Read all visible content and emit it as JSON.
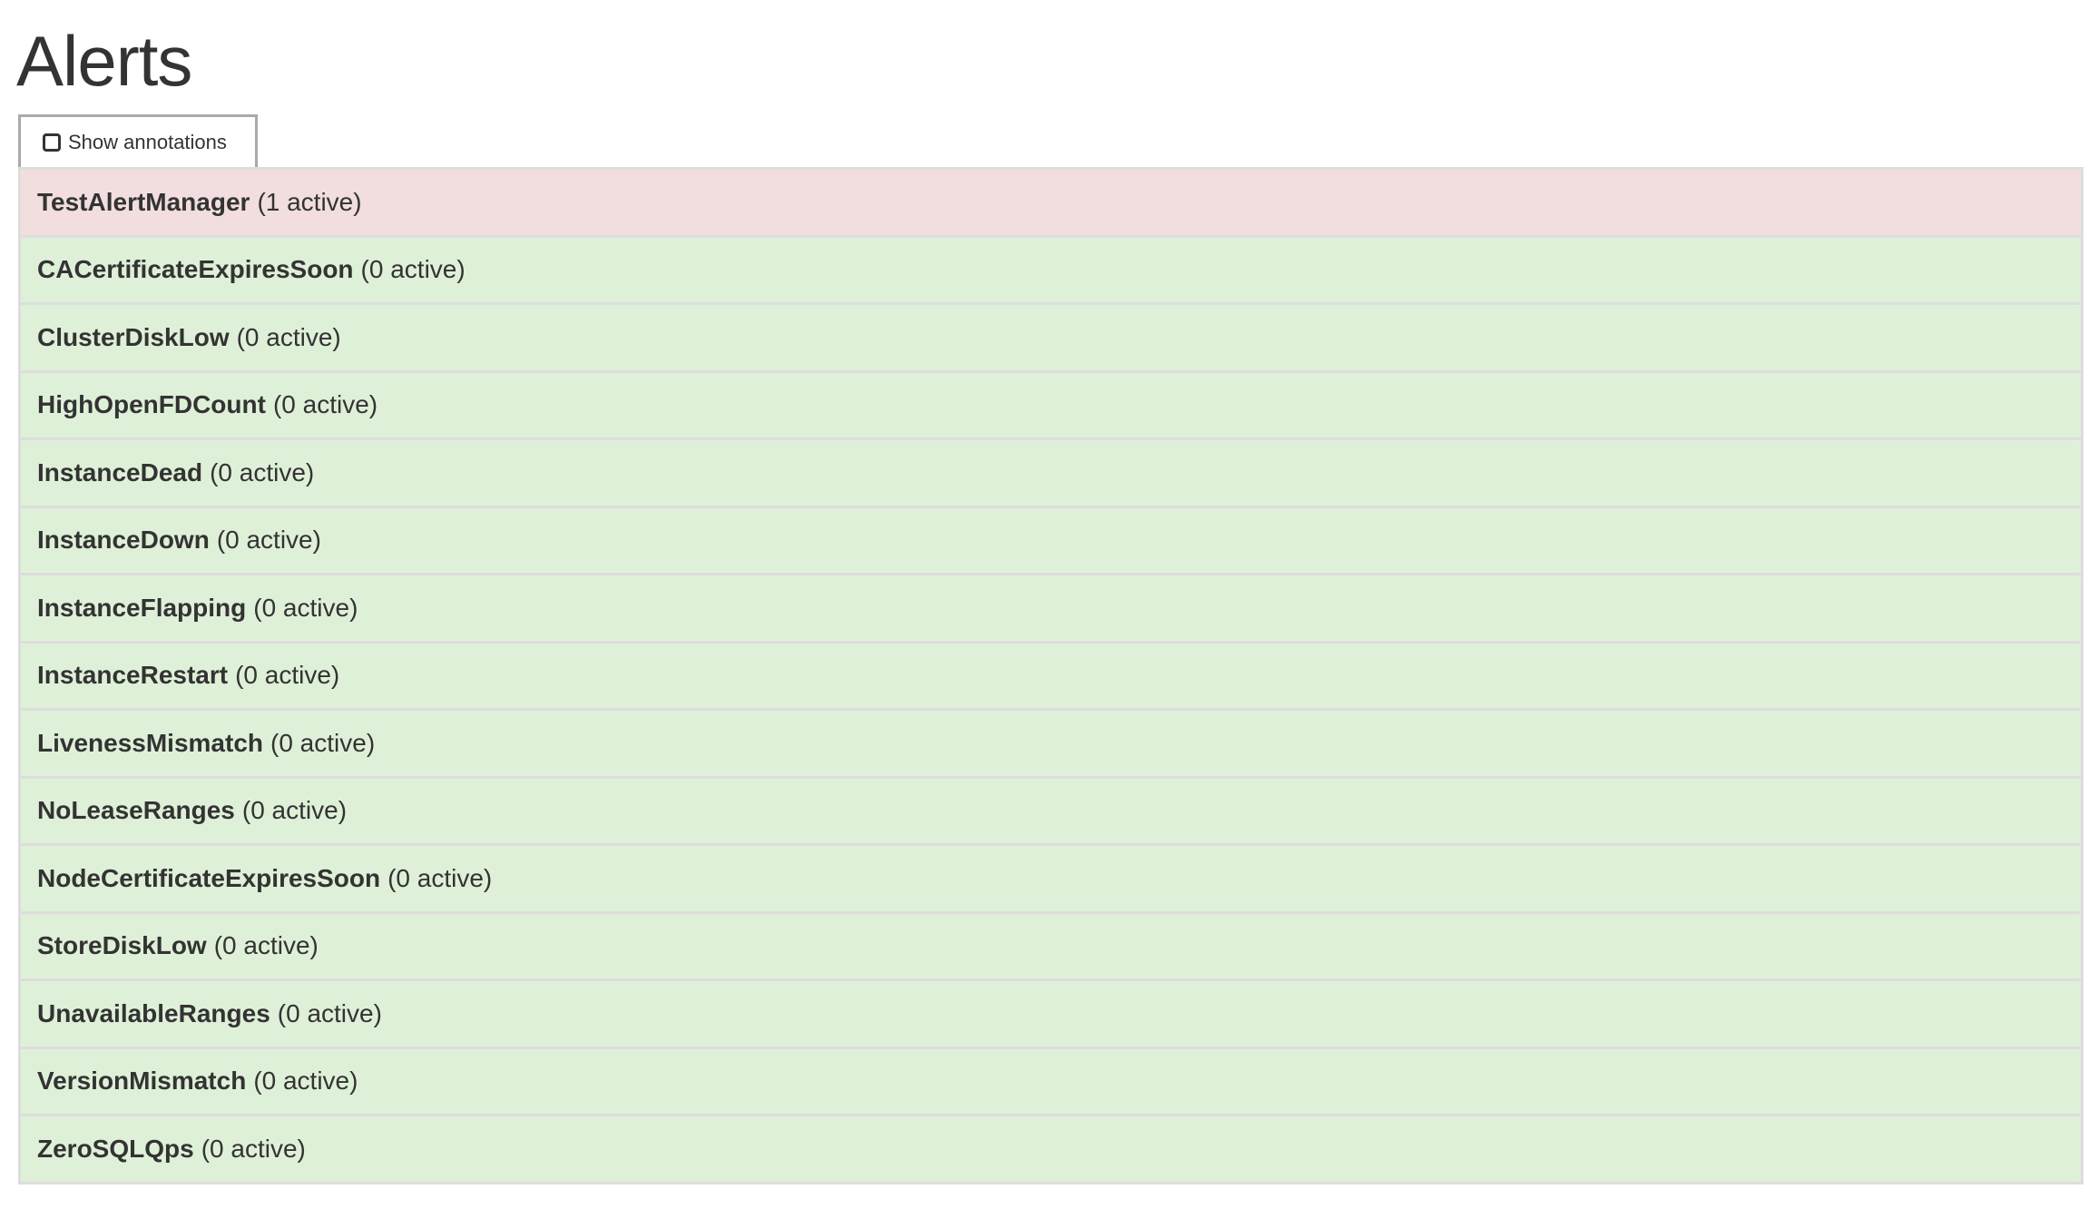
{
  "page": {
    "title": "Alerts"
  },
  "toolbar": {
    "show_annotations_label": "Show annotations",
    "show_annotations_checked": false
  },
  "colors": {
    "firing": "#f2dede",
    "inactive": "#dff0d8",
    "border": "#dddddd",
    "text": "#333333"
  },
  "alerts": [
    {
      "name": "TestAlertManager",
      "count": "(1 active)",
      "state": "firing"
    },
    {
      "name": "CACertificateExpiresSoon",
      "count": "(0 active)",
      "state": "ok"
    },
    {
      "name": "ClusterDiskLow",
      "count": "(0 active)",
      "state": "ok"
    },
    {
      "name": "HighOpenFDCount",
      "count": "(0 active)",
      "state": "ok"
    },
    {
      "name": "InstanceDead",
      "count": "(0 active)",
      "state": "ok"
    },
    {
      "name": "InstanceDown",
      "count": "(0 active)",
      "state": "ok"
    },
    {
      "name": "InstanceFlapping",
      "count": "(0 active)",
      "state": "ok"
    },
    {
      "name": "InstanceRestart",
      "count": "(0 active)",
      "state": "ok"
    },
    {
      "name": "LivenessMismatch",
      "count": "(0 active)",
      "state": "ok"
    },
    {
      "name": "NoLeaseRanges",
      "count": "(0 active)",
      "state": "ok"
    },
    {
      "name": "NodeCertificateExpiresSoon",
      "count": "(0 active)",
      "state": "ok"
    },
    {
      "name": "StoreDiskLow",
      "count": "(0 active)",
      "state": "ok"
    },
    {
      "name": "UnavailableRanges",
      "count": "(0 active)",
      "state": "ok"
    },
    {
      "name": "VersionMismatch",
      "count": "(0 active)",
      "state": "ok"
    },
    {
      "name": "ZeroSQLQps",
      "count": "(0 active)",
      "state": "ok"
    }
  ]
}
